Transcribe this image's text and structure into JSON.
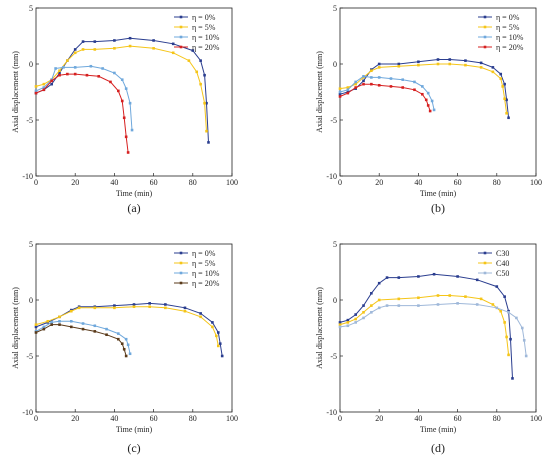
{
  "colors": {
    "eta0": "#2a3d8f",
    "eta5": "#f5c518",
    "eta10": "#6fa8dc",
    "eta20": "#d62020",
    "eta20_c": "#5a3a1a",
    "c30": "#2a3d8f",
    "c40": "#f5c518",
    "c50": "#9fb8d9"
  },
  "chart_data": [
    {
      "type": "line",
      "panel_label": "(a)",
      "xlabel": "Time (min)",
      "ylabel": "Axial displacement (mm)",
      "xlim": [
        0,
        100
      ],
      "ylim": [
        -10,
        5
      ],
      "xticks": [
        "0",
        "20",
        "40",
        "60",
        "80",
        "100"
      ],
      "yticks": [
        "-10",
        "-5",
        "0",
        "5"
      ],
      "legend_position": "top-right",
      "series": [
        {
          "name": "η = 0%",
          "color_key": "eta0",
          "marker": "square",
          "x": [
            0,
            4,
            8,
            12,
            16,
            20,
            24,
            30,
            40,
            48,
            60,
            70,
            80,
            84,
            86,
            87,
            88
          ],
          "y": [
            -2.6,
            -2.3,
            -1.8,
            -0.8,
            0.3,
            1.3,
            2.0,
            2.0,
            2.1,
            2.3,
            2.1,
            1.8,
            1.2,
            0.3,
            -1.0,
            -3.5,
            -7.0
          ]
        },
        {
          "name": "η = 5%",
          "color_key": "eta5",
          "marker": "square",
          "x": [
            0,
            4,
            8,
            12,
            16,
            20,
            24,
            30,
            40,
            48,
            60,
            70,
            78,
            82,
            84,
            86,
            87
          ],
          "y": [
            -2.0,
            -1.8,
            -1.4,
            -0.6,
            0.3,
            1.0,
            1.3,
            1.3,
            1.4,
            1.6,
            1.4,
            1.0,
            0.3,
            -0.7,
            -1.8,
            -3.5,
            -6.0
          ]
        },
        {
          "name": "η = 10%",
          "color_key": "eta10",
          "marker": "square",
          "x": [
            0,
            4,
            8,
            10,
            14,
            20,
            28,
            34,
            40,
            44,
            46,
            48,
            49
          ],
          "y": [
            -2.4,
            -2.1,
            -1.4,
            -0.4,
            -0.3,
            -0.3,
            -0.2,
            -0.4,
            -0.8,
            -1.4,
            -2.2,
            -3.5,
            -5.9
          ]
        },
        {
          "name": "η = 20%",
          "color_key": "eta20",
          "marker": "square",
          "x": [
            0,
            4,
            8,
            12,
            16,
            20,
            26,
            32,
            38,
            42,
            44,
            45,
            46,
            47
          ],
          "y": [
            -2.6,
            -2.3,
            -1.5,
            -1.0,
            -0.9,
            -0.9,
            -1.0,
            -1.1,
            -1.6,
            -2.4,
            -3.3,
            -4.8,
            -6.5,
            -7.9
          ]
        }
      ]
    },
    {
      "type": "line",
      "panel_label": "(b)",
      "xlabel": "Time (min)",
      "ylabel": "Axial displacement (mm)",
      "xlim": [
        0,
        100
      ],
      "ylim": [
        -10,
        5
      ],
      "xticks": [
        "0",
        "20",
        "40",
        "60",
        "80",
        "100"
      ],
      "yticks": [
        "-10",
        "-5",
        "0",
        "5"
      ],
      "legend_position": "top-right",
      "series": [
        {
          "name": "η = 0%",
          "color_key": "eta0",
          "marker": "square",
          "x": [
            0,
            4,
            8,
            12,
            16,
            20,
            30,
            40,
            50,
            56,
            64,
            72,
            78,
            82,
            84,
            85,
            86
          ],
          "y": [
            -2.7,
            -2.5,
            -2.2,
            -1.5,
            -0.5,
            0.0,
            0.0,
            0.2,
            0.4,
            0.4,
            0.3,
            0.1,
            -0.3,
            -0.9,
            -1.8,
            -3.2,
            -4.8
          ]
        },
        {
          "name": "η = 5%",
          "color_key": "eta5",
          "marker": "square",
          "x": [
            0,
            4,
            8,
            12,
            16,
            20,
            30,
            40,
            50,
            56,
            64,
            72,
            78,
            82,
            83,
            84,
            85
          ],
          "y": [
            -2.2,
            -2.1,
            -1.8,
            -1.2,
            -0.6,
            -0.3,
            -0.2,
            -0.1,
            0.0,
            0.0,
            -0.1,
            -0.3,
            -0.7,
            -1.3,
            -2.0,
            -3.1,
            -4.4
          ]
        },
        {
          "name": "η = 10%",
          "color_key": "eta10",
          "marker": "square",
          "x": [
            0,
            4,
            8,
            12,
            16,
            20,
            26,
            32,
            38,
            42,
            45,
            47,
            48
          ],
          "y": [
            -2.5,
            -2.3,
            -1.6,
            -1.1,
            -1.2,
            -1.2,
            -1.3,
            -1.4,
            -1.6,
            -2.0,
            -2.6,
            -3.3,
            -4.1
          ]
        },
        {
          "name": "η = 20%",
          "color_key": "eta20",
          "marker": "square",
          "x": [
            0,
            4,
            8,
            12,
            16,
            20,
            26,
            32,
            38,
            42,
            44,
            45,
            46
          ],
          "y": [
            -2.9,
            -2.6,
            -2.1,
            -1.8,
            -1.8,
            -1.9,
            -2.0,
            -2.1,
            -2.3,
            -2.7,
            -3.2,
            -3.7,
            -4.2
          ]
        }
      ]
    },
    {
      "type": "line",
      "panel_label": "(c)",
      "xlabel": "Time (min)",
      "ylabel": "Axial displacement (mm)",
      "xlim": [
        0,
        100
      ],
      "ylim": [
        -10,
        5
      ],
      "xticks": [
        "0",
        "20",
        "40",
        "60",
        "80",
        "100"
      ],
      "yticks": [
        "-10",
        "-5",
        "0",
        "5"
      ],
      "legend_position": "top-right",
      "series": [
        {
          "name": "η = 0%",
          "color_key": "eta0",
          "marker": "square",
          "x": [
            0,
            6,
            12,
            18,
            22,
            30,
            40,
            50,
            58,
            66,
            76,
            84,
            90,
            93,
            94,
            95
          ],
          "y": [
            -2.4,
            -2.0,
            -1.5,
            -0.9,
            -0.6,
            -0.6,
            -0.5,
            -0.4,
            -0.3,
            -0.4,
            -0.7,
            -1.2,
            -2.0,
            -2.9,
            -3.9,
            -5.0
          ]
        },
        {
          "name": "η = 5%",
          "color_key": "eta5",
          "marker": "square",
          "x": [
            0,
            6,
            12,
            18,
            22,
            30,
            40,
            50,
            58,
            66,
            76,
            84,
            90,
            92,
            93
          ],
          "y": [
            -2.2,
            -1.9,
            -1.5,
            -1.0,
            -0.7,
            -0.7,
            -0.7,
            -0.6,
            -0.6,
            -0.7,
            -1.0,
            -1.5,
            -2.4,
            -3.2,
            -4.1
          ]
        },
        {
          "name": "η = 10%",
          "color_key": "eta10",
          "marker": "square",
          "x": [
            0,
            4,
            8,
            12,
            18,
            24,
            30,
            36,
            42,
            46,
            47,
            48
          ],
          "y": [
            -2.8,
            -2.4,
            -2.0,
            -1.9,
            -1.9,
            -2.1,
            -2.3,
            -2.6,
            -3.0,
            -3.5,
            -4.0,
            -4.8
          ]
        },
        {
          "name": "η = 20%",
          "color_key": "eta20_c",
          "marker": "square",
          "x": [
            0,
            4,
            8,
            12,
            18,
            24,
            30,
            36,
            42,
            44,
            45,
            46
          ],
          "y": [
            -2.9,
            -2.6,
            -2.2,
            -2.2,
            -2.4,
            -2.6,
            -2.8,
            -3.1,
            -3.5,
            -3.9,
            -4.4,
            -5.0
          ]
        }
      ]
    },
    {
      "type": "line",
      "panel_label": "(d)",
      "xlabel": "Time (min)",
      "ylabel": "Axial displacement (mm)",
      "xlim": [
        0,
        100
      ],
      "ylim": [
        -10,
        5
      ],
      "xticks": [
        "0",
        "20",
        "40",
        "60",
        "80",
        "100"
      ],
      "yticks": [
        "-10",
        "-5",
        "0",
        "5"
      ],
      "legend_position": "top-right",
      "series": [
        {
          "name": "C30",
          "color_key": "c30",
          "marker": "square",
          "x": [
            0,
            4,
            8,
            12,
            16,
            20,
            24,
            30,
            40,
            48,
            60,
            70,
            80,
            84,
            86,
            87,
            88
          ],
          "y": [
            -2.0,
            -1.8,
            -1.3,
            -0.5,
            0.6,
            1.5,
            2.0,
            2.0,
            2.1,
            2.3,
            2.1,
            1.8,
            1.2,
            0.3,
            -1.0,
            -3.5,
            -7.0
          ]
        },
        {
          "name": "C40",
          "color_key": "c40",
          "marker": "square",
          "x": [
            0,
            4,
            8,
            12,
            16,
            20,
            30,
            40,
            50,
            56,
            64,
            72,
            78,
            82,
            84,
            85,
            86
          ],
          "y": [
            -2.2,
            -2.0,
            -1.7,
            -1.1,
            -0.5,
            0.0,
            0.1,
            0.2,
            0.4,
            0.4,
            0.3,
            0.1,
            -0.4,
            -1.0,
            -2.0,
            -3.3,
            -4.9
          ]
        },
        {
          "name": "C50",
          "color_key": "c50",
          "marker": "square",
          "x": [
            0,
            4,
            8,
            12,
            16,
            20,
            24,
            30,
            40,
            50,
            60,
            70,
            80,
            86,
            90,
            93,
            94,
            95
          ],
          "y": [
            -2.4,
            -2.3,
            -2.0,
            -1.6,
            -1.1,
            -0.7,
            -0.5,
            -0.5,
            -0.5,
            -0.4,
            -0.3,
            -0.4,
            -0.7,
            -1.1,
            -1.6,
            -2.5,
            -3.6,
            -5.0
          ]
        }
      ]
    }
  ]
}
